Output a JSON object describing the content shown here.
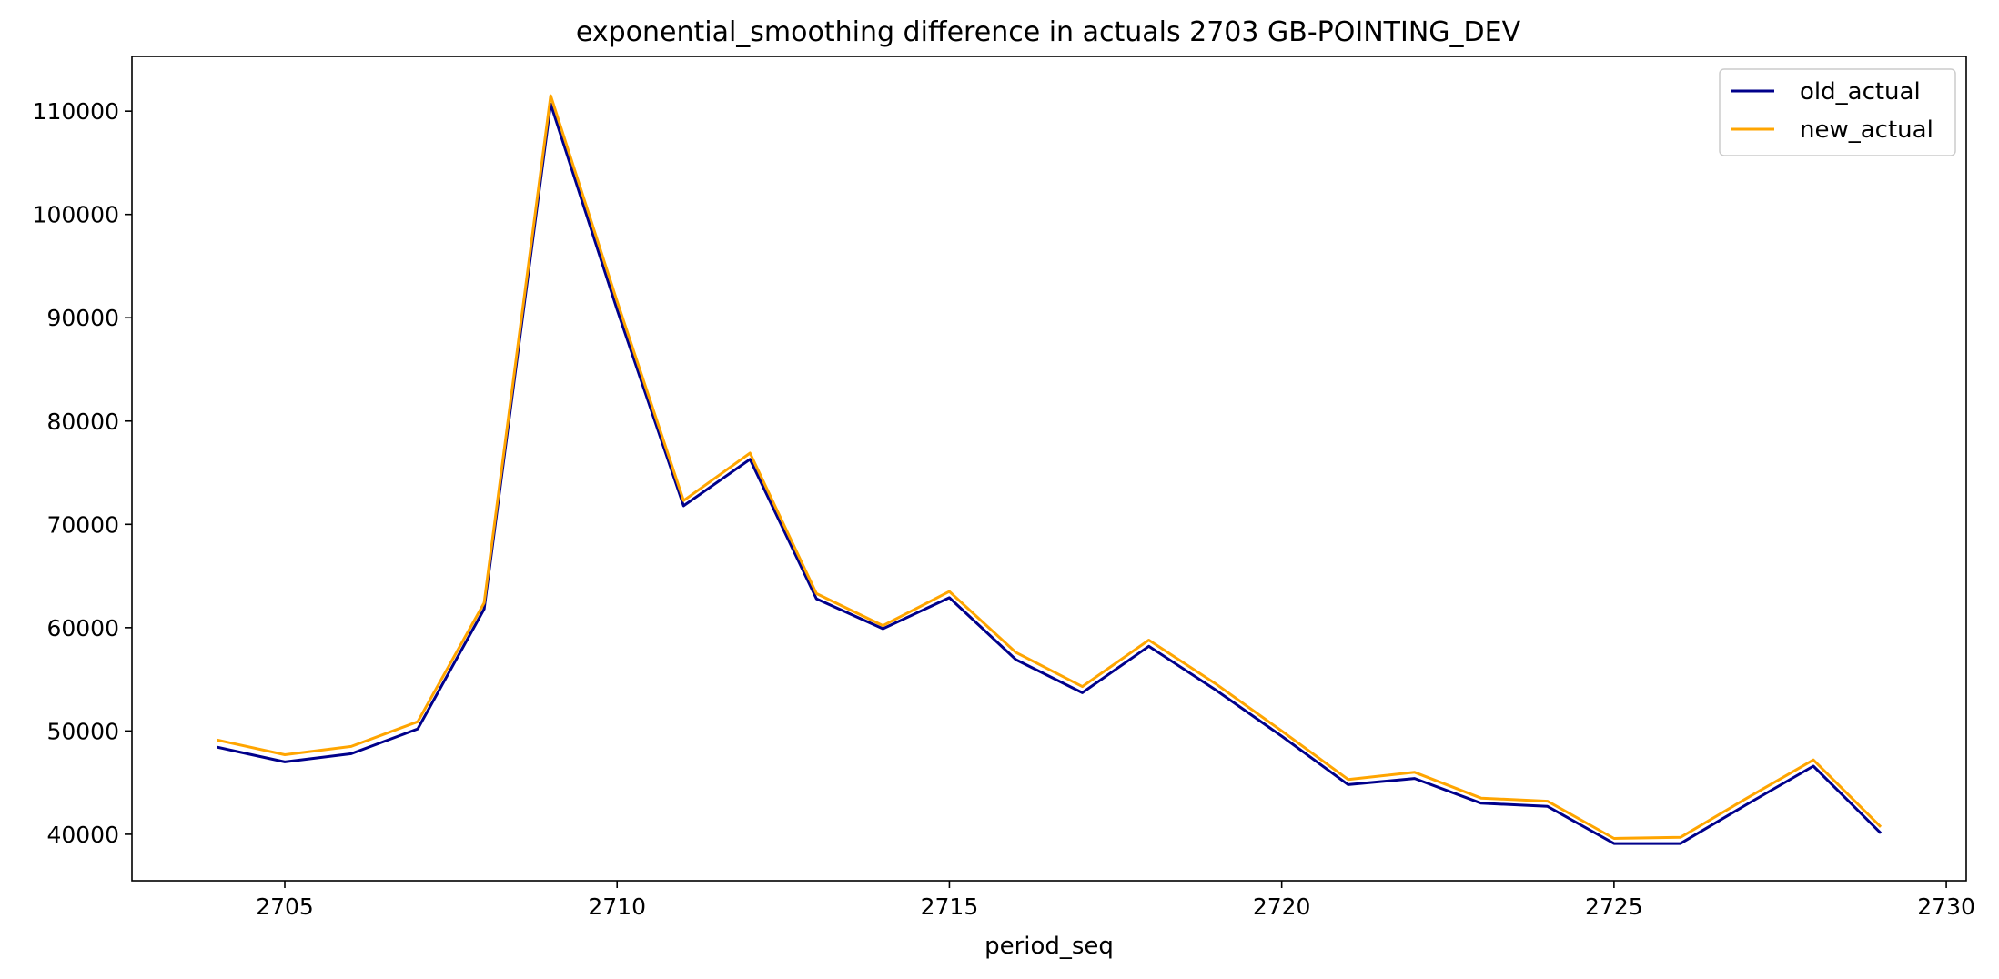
{
  "chart_data": {
    "type": "line",
    "title": "exponential_smoothing difference in actuals 2703 GB-POINTING_DEV",
    "xlabel": "period_seq",
    "ylabel": "",
    "xlim": [
      2702.7,
      2730.3
    ],
    "ylim": [
      35500,
      115300
    ],
    "grid": false,
    "legend_position": "top-right",
    "x_ticks": [
      2705,
      2710,
      2715,
      2720,
      2725,
      2730
    ],
    "y_ticks": [
      40000,
      50000,
      60000,
      70000,
      80000,
      90000,
      100000,
      110000
    ],
    "x": [
      2704,
      2705,
      2706,
      2707,
      2708,
      2709,
      2710,
      2711,
      2712,
      2713,
      2714,
      2715,
      2716,
      2717,
      2718,
      2719,
      2720,
      2721,
      2722,
      2723,
      2724,
      2725,
      2726,
      2727,
      2728,
      2729
    ],
    "series": [
      {
        "name": "old_actual",
        "color": "#00008b",
        "values": [
          48400,
          47000,
          47800,
          50200,
          61800,
          110700,
          90800,
          71800,
          76300,
          62800,
          59900,
          62900,
          56900,
          53700,
          58200,
          54000,
          49500,
          44800,
          45400,
          43000,
          42700,
          39100,
          39100,
          42900,
          46600,
          40200
        ]
      },
      {
        "name": "new_actual",
        "color": "#ffa500",
        "values": [
          49100,
          47700,
          48500,
          50900,
          62400,
          111500,
          91600,
          72300,
          76900,
          63300,
          60200,
          63500,
          57600,
          54300,
          58800,
          54600,
          50000,
          45300,
          46000,
          43500,
          43200,
          39600,
          39700,
          43500,
          47200,
          40800
        ]
      }
    ]
  }
}
